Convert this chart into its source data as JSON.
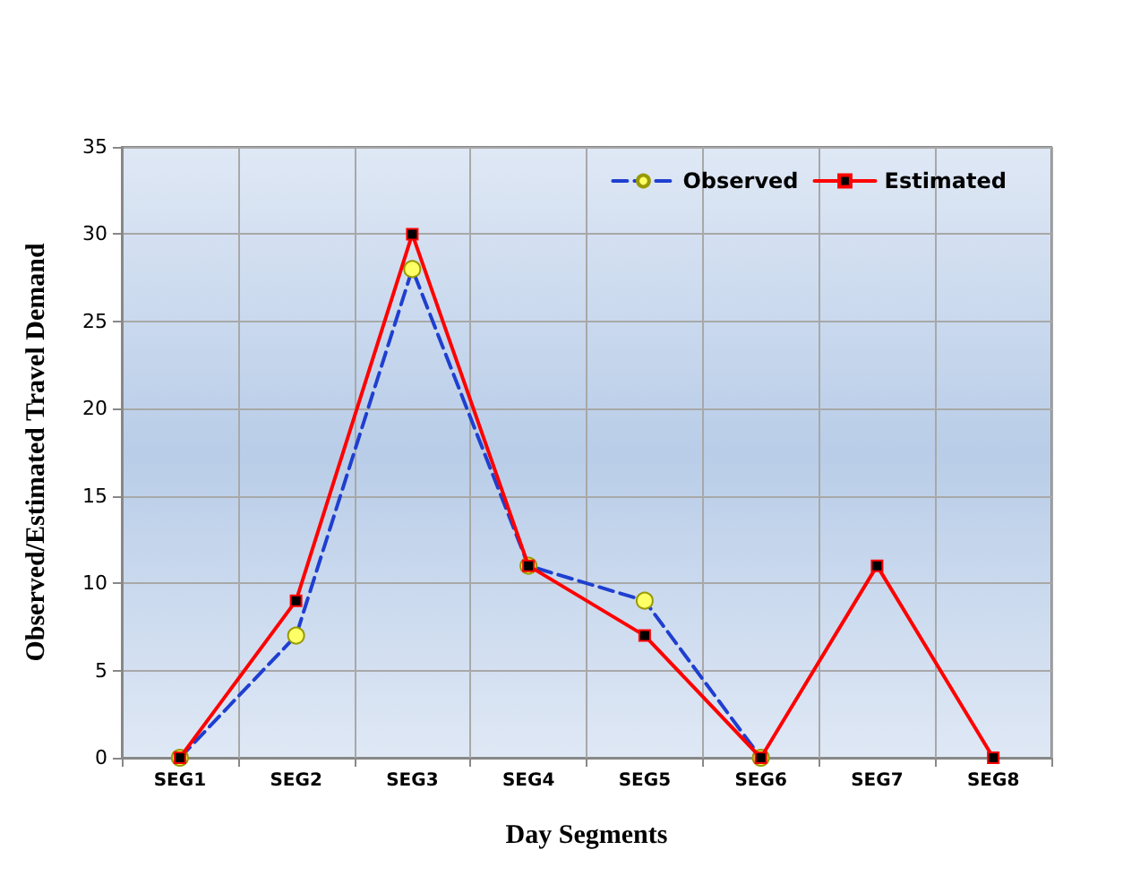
{
  "chart_data": {
    "type": "line",
    "xlabel": "Day Segments",
    "ylabel": "Observed/Estimated Travel Demand",
    "categories": [
      "SEG1",
      "SEG2",
      "SEG3",
      "SEG4",
      "SEG5",
      "SEG6",
      "SEG7",
      "SEG8"
    ],
    "series": [
      {
        "name": "Observed",
        "color": "#1f3fd0",
        "line_style": "dashed",
        "marker": "circle",
        "values": [
          0,
          7,
          28,
          11,
          9,
          0,
          null,
          null
        ]
      },
      {
        "name": "Estimated",
        "color": "#ff0000",
        "line_style": "solid",
        "marker": "square",
        "values": [
          0,
          9,
          30,
          11,
          7,
          0,
          11,
          0
        ]
      }
    ],
    "ylim": [
      0,
      35
    ],
    "yticks": [
      0,
      5,
      10,
      15,
      20,
      25,
      30,
      35
    ],
    "grid": true,
    "legend": "top right"
  }
}
